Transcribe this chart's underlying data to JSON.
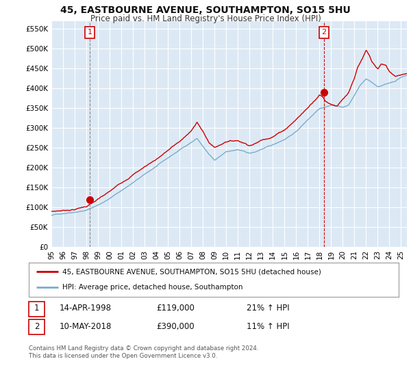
{
  "title_line1": "45, EASTBOURNE AVENUE, SOUTHAMPTON, SO15 5HU",
  "title_line2": "Price paid vs. HM Land Registry's House Price Index (HPI)",
  "ylabel_ticks": [
    "£0",
    "£50K",
    "£100K",
    "£150K",
    "£200K",
    "£250K",
    "£300K",
    "£350K",
    "£400K",
    "£450K",
    "£500K",
    "£550K"
  ],
  "ytick_values": [
    0,
    50000,
    100000,
    150000,
    200000,
    250000,
    300000,
    350000,
    400000,
    450000,
    500000,
    550000
  ],
  "ylim": [
    0,
    570000
  ],
  "xlim_start": 1995.0,
  "xlim_end": 2025.5,
  "xtick_years": [
    1995,
    1996,
    1997,
    1998,
    1999,
    2000,
    2001,
    2002,
    2003,
    2004,
    2005,
    2006,
    2007,
    2008,
    2009,
    2010,
    2011,
    2012,
    2013,
    2014,
    2015,
    2016,
    2017,
    2018,
    2019,
    2020,
    2021,
    2022,
    2023,
    2024,
    2025
  ],
  "sale1_x": 1998.29,
  "sale1_y": 119000,
  "sale1_label": "1",
  "sale1_line_color": "#888888",
  "sale2_x": 2018.37,
  "sale2_y": 390000,
  "sale2_label": "2",
  "sale2_line_color": "#cc0000",
  "red_color": "#cc0000",
  "blue_color": "#7aadcc",
  "background_color": "#dce9f5",
  "plot_bg_color": "#dce9f5",
  "grid_color": "#ffffff",
  "legend_entry1": "45, EASTBOURNE AVENUE, SOUTHAMPTON, SO15 5HU (detached house)",
  "legend_entry2": "HPI: Average price, detached house, Southampton",
  "table_row1": [
    "1",
    "14-APR-1998",
    "£119,000",
    "21% ↑ HPI"
  ],
  "table_row2": [
    "2",
    "10-MAY-2018",
    "£390,000",
    "11% ↑ HPI"
  ],
  "footnote": "Contains HM Land Registry data © Crown copyright and database right 2024.\nThis data is licensed under the Open Government Licence v3.0."
}
